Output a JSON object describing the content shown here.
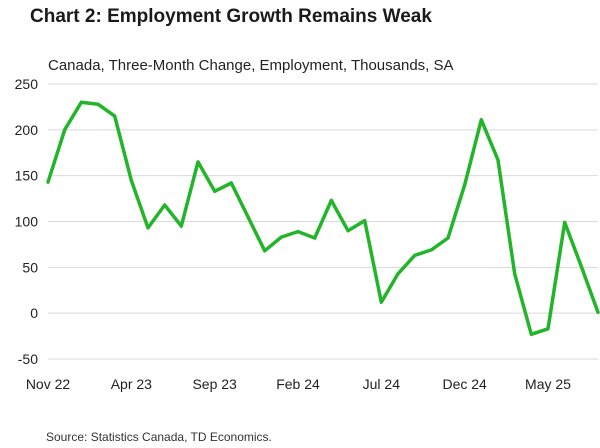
{
  "chart_data": {
    "type": "line",
    "title": "Chart 2: Employment Growth Remains Weak",
    "subtitle": "Canada, Three-Month Change, Employment, Thousands, SA",
    "source": "Source: Statistics Canada, TD Economics.",
    "ylim": [
      -50,
      250
    ],
    "yticks": [
      -50,
      0,
      50,
      100,
      150,
      200,
      250
    ],
    "grid": true,
    "legend": "none",
    "line_color": "#22b52a",
    "x_tick_labels": [
      "Nov 22",
      "Apr 23",
      "Sep 23",
      "Feb 24",
      "Jul 24",
      "Dec 24",
      "May 25"
    ],
    "x": [
      "Nov 22",
      "Dec 22",
      "Jan 23",
      "Feb 23",
      "Mar 23",
      "Apr 23",
      "May 23",
      "Jun 23",
      "Jul 23",
      "Aug 23",
      "Sep 23",
      "Oct 23",
      "Nov 23",
      "Dec 23",
      "Jan 24",
      "Feb 24",
      "Mar 24",
      "Apr 24",
      "May 24",
      "Jun 24",
      "Jul 24",
      "Aug 24",
      "Sep 24",
      "Oct 24",
      "Nov 24",
      "Dec 24",
      "Jan 25",
      "Feb 25",
      "Mar 25",
      "Apr 25",
      "May 25",
      "Jun 25",
      "Jul 25",
      "Aug 25"
    ],
    "series": [
      {
        "values": [
          143,
          200,
          230,
          228,
          215,
          145,
          93,
          118,
          95,
          165,
          133,
          142,
          105,
          68,
          83,
          89,
          82,
          123,
          90,
          101,
          12,
          43,
          63,
          69,
          82,
          140,
          211,
          167,
          43,
          -23,
          -17,
          99,
          51,
          1
        ]
      }
    ]
  }
}
